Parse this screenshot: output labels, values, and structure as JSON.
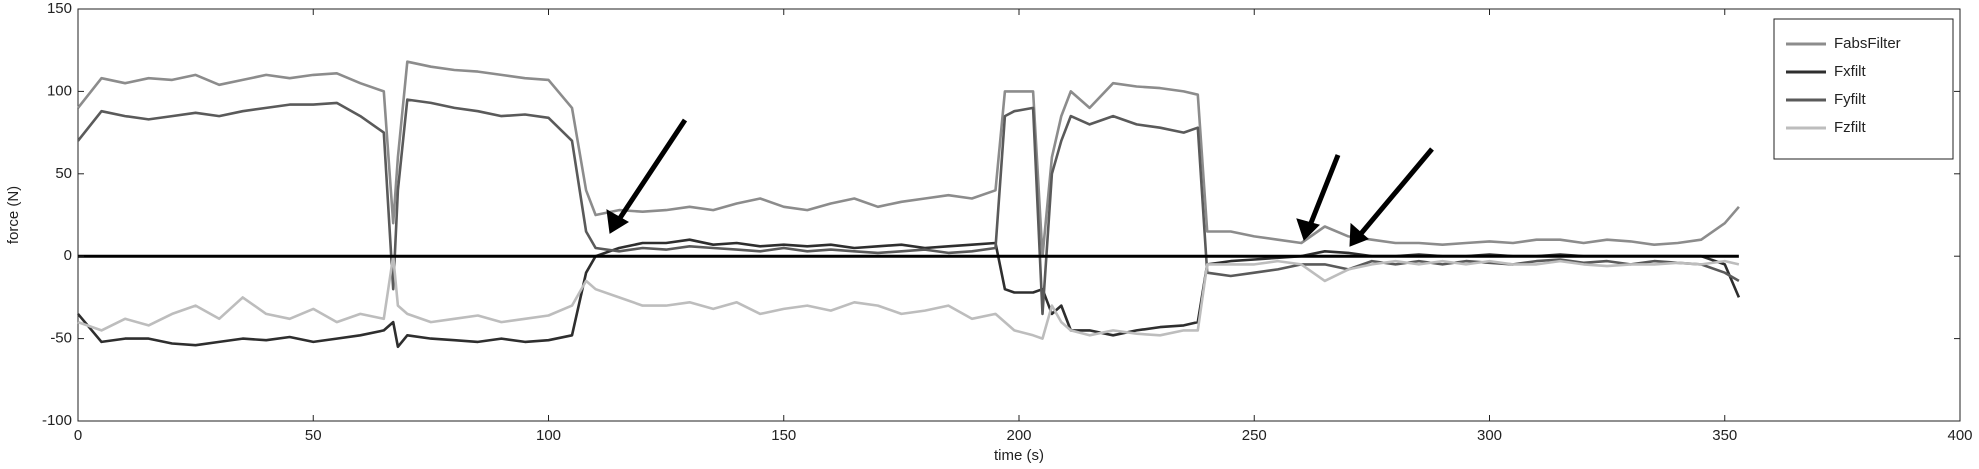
{
  "chart_data": {
    "type": "line",
    "x_label": "time (s)",
    "y_label": "force (N)",
    "xlim": [
      0,
      400
    ],
    "ylim": [
      -100,
      150
    ],
    "xticks": [
      0,
      50,
      100,
      150,
      200,
      250,
      300,
      350,
      400
    ],
    "yticks": [
      -100,
      -50,
      0,
      50,
      100,
      150
    ],
    "grid": false,
    "legend": "upper right",
    "hline": 0,
    "x": [
      0,
      5,
      10,
      15,
      20,
      25,
      30,
      35,
      40,
      45,
      50,
      55,
      60,
      65,
      67,
      68,
      70,
      75,
      80,
      85,
      90,
      95,
      100,
      105,
      108,
      110,
      115,
      120,
      125,
      130,
      135,
      140,
      145,
      150,
      155,
      160,
      165,
      170,
      175,
      180,
      185,
      190,
      195,
      197,
      199,
      203,
      205,
      207,
      209,
      211,
      215,
      220,
      225,
      230,
      235,
      238,
      240,
      245,
      250,
      255,
      260,
      265,
      270,
      275,
      280,
      285,
      290,
      295,
      300,
      305,
      310,
      315,
      320,
      325,
      330,
      335,
      340,
      345,
      350,
      353
    ],
    "series": [
      {
        "name": "FabsFilter",
        "color": "#8c8c8c",
        "values": [
          90,
          108,
          105,
          108,
          107,
          110,
          104,
          107,
          110,
          108,
          110,
          111,
          105,
          100,
          20,
          60,
          118,
          115,
          113,
          112,
          110,
          108,
          107,
          90,
          40,
          25,
          28,
          27,
          28,
          30,
          28,
          32,
          35,
          30,
          28,
          32,
          35,
          30,
          33,
          35,
          37,
          35,
          40,
          100,
          100,
          100,
          0,
          60,
          85,
          100,
          90,
          105,
          103,
          102,
          100,
          98,
          15,
          15,
          12,
          10,
          8,
          18,
          12,
          10,
          8,
          8,
          7,
          8,
          9,
          8,
          10,
          10,
          8,
          10,
          9,
          7,
          8,
          10,
          20,
          30
        ]
      },
      {
        "name": "Fxfilt",
        "color": "#2e2e2e",
        "values": [
          -35,
          -52,
          -50,
          -50,
          -53,
          -54,
          -52,
          -50,
          -51,
          -49,
          -52,
          -50,
          -48,
          -45,
          -40,
          -55,
          -48,
          -50,
          -51,
          -52,
          -50,
          -52,
          -51,
          -48,
          -10,
          0,
          5,
          8,
          8,
          10,
          7,
          8,
          6,
          7,
          6,
          7,
          5,
          6,
          7,
          5,
          6,
          7,
          8,
          -20,
          -22,
          -22,
          -20,
          -35,
          -30,
          -45,
          -45,
          -48,
          -45,
          -43,
          -42,
          -40,
          -5,
          -3,
          -2,
          -1,
          0,
          3,
          2,
          0,
          0,
          1,
          0,
          0,
          1,
          0,
          0,
          1,
          0,
          0,
          0,
          0,
          0,
          0,
          -5,
          -25
        ]
      },
      {
        "name": "Fyfilt",
        "color": "#5a5a5a",
        "values": [
          70,
          88,
          85,
          83,
          85,
          87,
          85,
          88,
          90,
          92,
          92,
          93,
          85,
          75,
          -20,
          40,
          95,
          93,
          90,
          88,
          85,
          86,
          84,
          70,
          15,
          5,
          3,
          5,
          4,
          6,
          5,
          4,
          3,
          5,
          3,
          4,
          3,
          2,
          3,
          4,
          2,
          3,
          5,
          85,
          88,
          90,
          -35,
          50,
          70,
          85,
          80,
          85,
          80,
          78,
          75,
          78,
          -10,
          -12,
          -10,
          -8,
          -5,
          -5,
          -8,
          -3,
          -5,
          -3,
          -5,
          -3,
          -4,
          -5,
          -3,
          -2,
          -4,
          -3,
          -5,
          -3,
          -4,
          -5,
          -10,
          -15
        ]
      },
      {
        "name": "Fzfilt",
        "color": "#bdbdbd",
        "values": [
          -40,
          -45,
          -38,
          -42,
          -35,
          -30,
          -38,
          -25,
          -35,
          -38,
          -32,
          -40,
          -35,
          -38,
          0,
          -30,
          -35,
          -40,
          -38,
          -36,
          -40,
          -38,
          -36,
          -30,
          -15,
          -20,
          -25,
          -30,
          -30,
          -28,
          -32,
          -28,
          -35,
          -32,
          -30,
          -33,
          -28,
          -30,
          -35,
          -33,
          -30,
          -38,
          -35,
          -40,
          -45,
          -48,
          -50,
          -30,
          -40,
          -45,
          -48,
          -45,
          -47,
          -48,
          -45,
          -45,
          -5,
          -5,
          -5,
          -3,
          -5,
          -15,
          -8,
          -5,
          -3,
          -5,
          -3,
          -5,
          -3,
          -5,
          -5,
          -3,
          -5,
          -6,
          -5,
          -5,
          -4,
          -5,
          -3,
          -5
        ]
      }
    ]
  }
}
